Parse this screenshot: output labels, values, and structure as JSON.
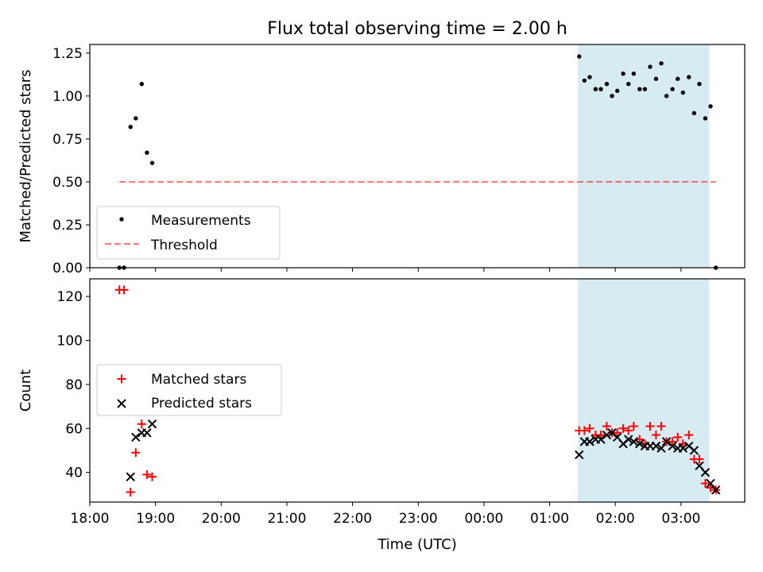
{
  "colors": {
    "shade": "#add8e6",
    "threshold": "#ff0000",
    "measurement": "#000000",
    "matched": "#ff0000",
    "predicted": "#000000"
  },
  "chart_data": {
    "title": "Flux total observing time = 2.00 h",
    "xlabel": "Time (UTC)",
    "x_unit": "hours since 18:00 UTC",
    "xlim": [
      0,
      9.97
    ],
    "x_ticks": [
      {
        "v": 0,
        "label": "18:00"
      },
      {
        "v": 1,
        "label": "19:00"
      },
      {
        "v": 2,
        "label": "20:00"
      },
      {
        "v": 3,
        "label": "21:00"
      },
      {
        "v": 4,
        "label": "22:00"
      },
      {
        "v": 5,
        "label": "23:00"
      },
      {
        "v": 6,
        "label": "00:00"
      },
      {
        "v": 7,
        "label": "01:00"
      },
      {
        "v": 8,
        "label": "02:00"
      },
      {
        "v": 9,
        "label": "03:00"
      }
    ],
    "shaded_span": [
      7.43,
      9.43
    ],
    "top": {
      "type": "scatter",
      "ylabel": "Matched/Predicted stars",
      "ylim": [
        0,
        1.3
      ],
      "y_ticks": [
        0.0,
        0.25,
        0.5,
        0.75,
        1.0,
        1.25
      ],
      "y_tick_labels": [
        "0.00",
        "0.25",
        "0.50",
        "0.75",
        "1.00",
        "1.25"
      ],
      "legend_position": "lower-left",
      "threshold": {
        "name": "Threshold",
        "y": 0.5,
        "x_range": [
          0.45,
          9.53
        ]
      },
      "measurements": {
        "name": "Measurements",
        "points": [
          [
            0.45,
            0
          ],
          [
            0.52,
            0
          ],
          [
            0.62,
            0.82
          ],
          [
            0.7,
            0.87
          ],
          [
            0.79,
            1.07
          ],
          [
            0.87,
            0.67
          ],
          [
            0.95,
            0.61
          ],
          [
            7.45,
            1.23
          ],
          [
            7.53,
            1.09
          ],
          [
            7.61,
            1.11
          ],
          [
            7.7,
            1.04
          ],
          [
            7.78,
            1.04
          ],
          [
            7.87,
            1.07
          ],
          [
            7.95,
            1.0
          ],
          [
            8.03,
            1.03
          ],
          [
            8.12,
            1.13
          ],
          [
            8.2,
            1.07
          ],
          [
            8.28,
            1.13
          ],
          [
            8.37,
            1.04
          ],
          [
            8.45,
            1.04
          ],
          [
            8.53,
            1.17
          ],
          [
            8.62,
            1.1
          ],
          [
            8.7,
            1.19
          ],
          [
            8.78,
            1.0
          ],
          [
            8.87,
            1.04
          ],
          [
            8.95,
            1.1
          ],
          [
            9.03,
            1.02
          ],
          [
            9.12,
            1.11
          ],
          [
            9.2,
            0.9
          ],
          [
            9.28,
            1.07
          ],
          [
            9.37,
            0.87
          ],
          [
            9.45,
            0.94
          ],
          [
            9.53,
            0
          ]
        ]
      }
    },
    "bottom": {
      "type": "scatter",
      "ylabel": "Count",
      "ylim": [
        26.5,
        128
      ],
      "y_ticks": [
        40,
        60,
        80,
        100,
        120
      ],
      "y_tick_labels": [
        "40",
        "60",
        "80",
        "100",
        "120"
      ],
      "legend_position": "center-left",
      "series": [
        {
          "name": "Matched stars",
          "marker": "plus",
          "points": [
            [
              0.45,
              123
            ],
            [
              0.52,
              123
            ],
            [
              0.62,
              31
            ],
            [
              0.7,
              49
            ],
            [
              0.79,
              62
            ],
            [
              0.87,
              39
            ],
            [
              0.95,
              38
            ],
            [
              7.45,
              59
            ],
            [
              7.53,
              59
            ],
            [
              7.61,
              60
            ],
            [
              7.7,
              57
            ],
            [
              7.78,
              57
            ],
            [
              7.87,
              61
            ],
            [
              7.95,
              58
            ],
            [
              8.03,
              58
            ],
            [
              8.12,
              60
            ],
            [
              8.2,
              59
            ],
            [
              8.28,
              61
            ],
            [
              8.37,
              55
            ],
            [
              8.45,
              53
            ],
            [
              8.53,
              61
            ],
            [
              8.62,
              57
            ],
            [
              8.7,
              61
            ],
            [
              8.78,
              54
            ],
            [
              8.87,
              54
            ],
            [
              8.95,
              56
            ],
            [
              9.03,
              53
            ],
            [
              9.12,
              57
            ],
            [
              9.2,
              46
            ],
            [
              9.28,
              46
            ],
            [
              9.37,
              35
            ],
            [
              9.45,
              33
            ],
            [
              9.53,
              32
            ]
          ]
        },
        {
          "name": "Predicted stars",
          "marker": "x",
          "points": [
            [
              0.62,
              38
            ],
            [
              0.7,
              56
            ],
            [
              0.79,
              58
            ],
            [
              0.87,
              58
            ],
            [
              0.95,
              62
            ],
            [
              7.45,
              48
            ],
            [
              7.53,
              54
            ],
            [
              7.61,
              54
            ],
            [
              7.7,
              55
            ],
            [
              7.78,
              55
            ],
            [
              7.87,
              57
            ],
            [
              7.95,
              58
            ],
            [
              8.03,
              56
            ],
            [
              8.12,
              53
            ],
            [
              8.2,
              55
            ],
            [
              8.28,
              54
            ],
            [
              8.37,
              53
            ],
            [
              8.45,
              52
            ],
            [
              8.53,
              52
            ],
            [
              8.62,
              52
            ],
            [
              8.7,
              51
            ],
            [
              8.78,
              54
            ],
            [
              8.87,
              52
            ],
            [
              8.95,
              51
            ],
            [
              9.03,
              51
            ],
            [
              9.12,
              52
            ],
            [
              9.2,
              50
            ],
            [
              9.28,
              43
            ],
            [
              9.37,
              40
            ],
            [
              9.45,
              35
            ],
            [
              9.53,
              32
            ]
          ]
        }
      ]
    }
  }
}
